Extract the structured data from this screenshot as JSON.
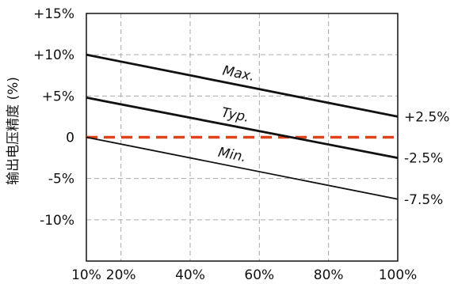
{
  "chart_data": {
    "type": "line",
    "title": "",
    "xlabel": "",
    "ylabel": "输出电压精度 (%)",
    "x": [
      10,
      100
    ],
    "xlim": [
      10,
      100
    ],
    "ylim": [
      -15,
      15
    ],
    "grid": true,
    "xticks": [
      {
        "value": 10,
        "label": "10%"
      },
      {
        "value": 20,
        "label": "20%"
      },
      {
        "value": 40,
        "label": "40%"
      },
      {
        "value": 60,
        "label": "60%"
      },
      {
        "value": 80,
        "label": "80%"
      },
      {
        "value": 100,
        "label": "100%"
      }
    ],
    "yticks": [
      {
        "value": 15,
        "label": "+15%"
      },
      {
        "value": 10,
        "label": "+10%"
      },
      {
        "value": 5,
        "label": "+5%"
      },
      {
        "value": 0,
        "label": "0"
      },
      {
        "value": -5,
        "label": "-5%"
      },
      {
        "value": -10,
        "label": "-10%"
      }
    ],
    "series": [
      {
        "name": "Max.",
        "x": [
          10,
          100
        ],
        "values": [
          10,
          2.5
        ],
        "color": "#111111",
        "end_label": "+2.5%"
      },
      {
        "name": "Typ.",
        "x": [
          10,
          100
        ],
        "values": [
          4.8,
          -2.5
        ],
        "color": "#111111",
        "end_label": "-2.5%"
      },
      {
        "name": "Min.",
        "x": [
          10,
          100
        ],
        "values": [
          0,
          -7.5
        ],
        "color": "#111111",
        "end_label": "-7.5%"
      }
    ],
    "reference_line": {
      "value": 0,
      "color": "#e0421a",
      "style": "dashed"
    }
  }
}
